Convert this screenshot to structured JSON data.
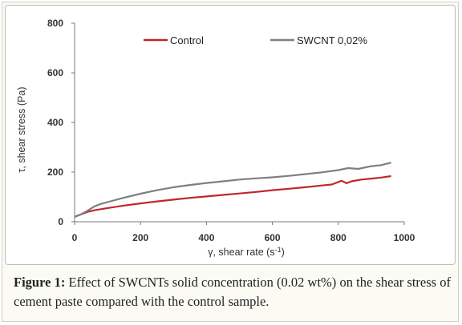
{
  "chart_data": {
    "type": "line",
    "xlabel": "γ, shear rate (s",
    "xlabel_sup": "-1",
    "xlabel_close": ")",
    "ylabel": "τ, shear stress (Pa)",
    "xlim": [
      0,
      1000
    ],
    "ylim": [
      0,
      800
    ],
    "xticks": [
      "0",
      "200",
      "400",
      "600",
      "800",
      "1000"
    ],
    "yticks": [
      "0",
      "200",
      "400",
      "600",
      "800"
    ],
    "grid": false,
    "legend_position": "top",
    "series": [
      {
        "name": "Control",
        "color": "#c0262e",
        "x": [
          0,
          20,
          40,
          60,
          100,
          150,
          200,
          250,
          300,
          350,
          400,
          450,
          500,
          550,
          600,
          650,
          700,
          750,
          780,
          810,
          825,
          840,
          870,
          900,
          930,
          960
        ],
        "y": [
          20,
          30,
          40,
          46,
          55,
          65,
          74,
          82,
          89,
          96,
          102,
          108,
          114,
          120,
          127,
          133,
          139,
          146,
          150,
          165,
          155,
          163,
          170,
          174,
          178,
          184
        ]
      },
      {
        "name": "SWCNT 0,02%",
        "color": "#7f7f7f",
        "x": [
          0,
          20,
          40,
          60,
          80,
          100,
          150,
          200,
          250,
          300,
          350,
          400,
          450,
          500,
          550,
          600,
          650,
          700,
          750,
          800,
          830,
          860,
          900,
          930,
          960
        ],
        "y": [
          20,
          30,
          45,
          62,
          72,
          79,
          97,
          113,
          127,
          139,
          148,
          156,
          163,
          170,
          175,
          179,
          185,
          192,
          199,
          208,
          216,
          213,
          224,
          228,
          238
        ]
      }
    ]
  },
  "caption": {
    "label": "Figure 1:",
    "text": " Effect of SWCNTs solid concentration (0.02 wt%) on the shear stress of cement paste compared with the control sample."
  }
}
